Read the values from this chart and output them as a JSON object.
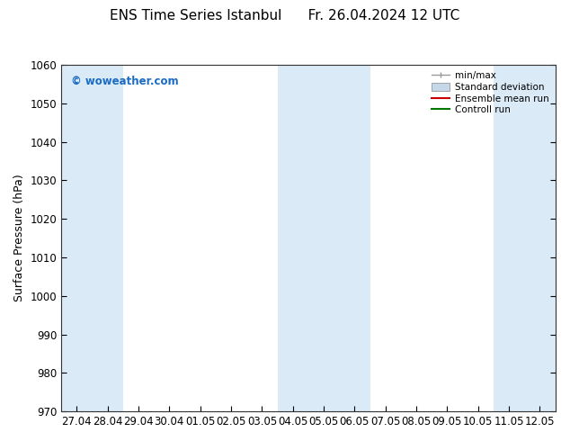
{
  "title": "ENS Time Series Istanbul      Fr. 26.04.2024 12 UTC",
  "ylabel": "Surface Pressure (hPa)",
  "ylim": [
    970,
    1060
  ],
  "yticks": [
    970,
    980,
    990,
    1000,
    1010,
    1020,
    1030,
    1040,
    1050,
    1060
  ],
  "xtick_labels": [
    "27.04",
    "28.04",
    "29.04",
    "30.04",
    "01.05",
    "02.05",
    "03.05",
    "04.05",
    "05.05",
    "06.05",
    "07.05",
    "08.05",
    "09.05",
    "10.05",
    "11.05",
    "12.05"
  ],
  "watermark": "© woweather.com",
  "watermark_color": "#1a6bc4",
  "shaded_indices": [
    0,
    1,
    7,
    8,
    9,
    14,
    15
  ],
  "shaded_color": "#daeaf7",
  "background_color": "#ffffff",
  "legend_labels": [
    "min/max",
    "Standard deviation",
    "Ensemble mean run",
    "Controll run"
  ],
  "legend_colors_line": [
    "#888888",
    "#aabbcc",
    "#ff0000",
    "#007700"
  ],
  "title_fontsize": 11,
  "ylabel_fontsize": 9,
  "tick_fontsize": 8.5,
  "legend_fontsize": 7.5
}
